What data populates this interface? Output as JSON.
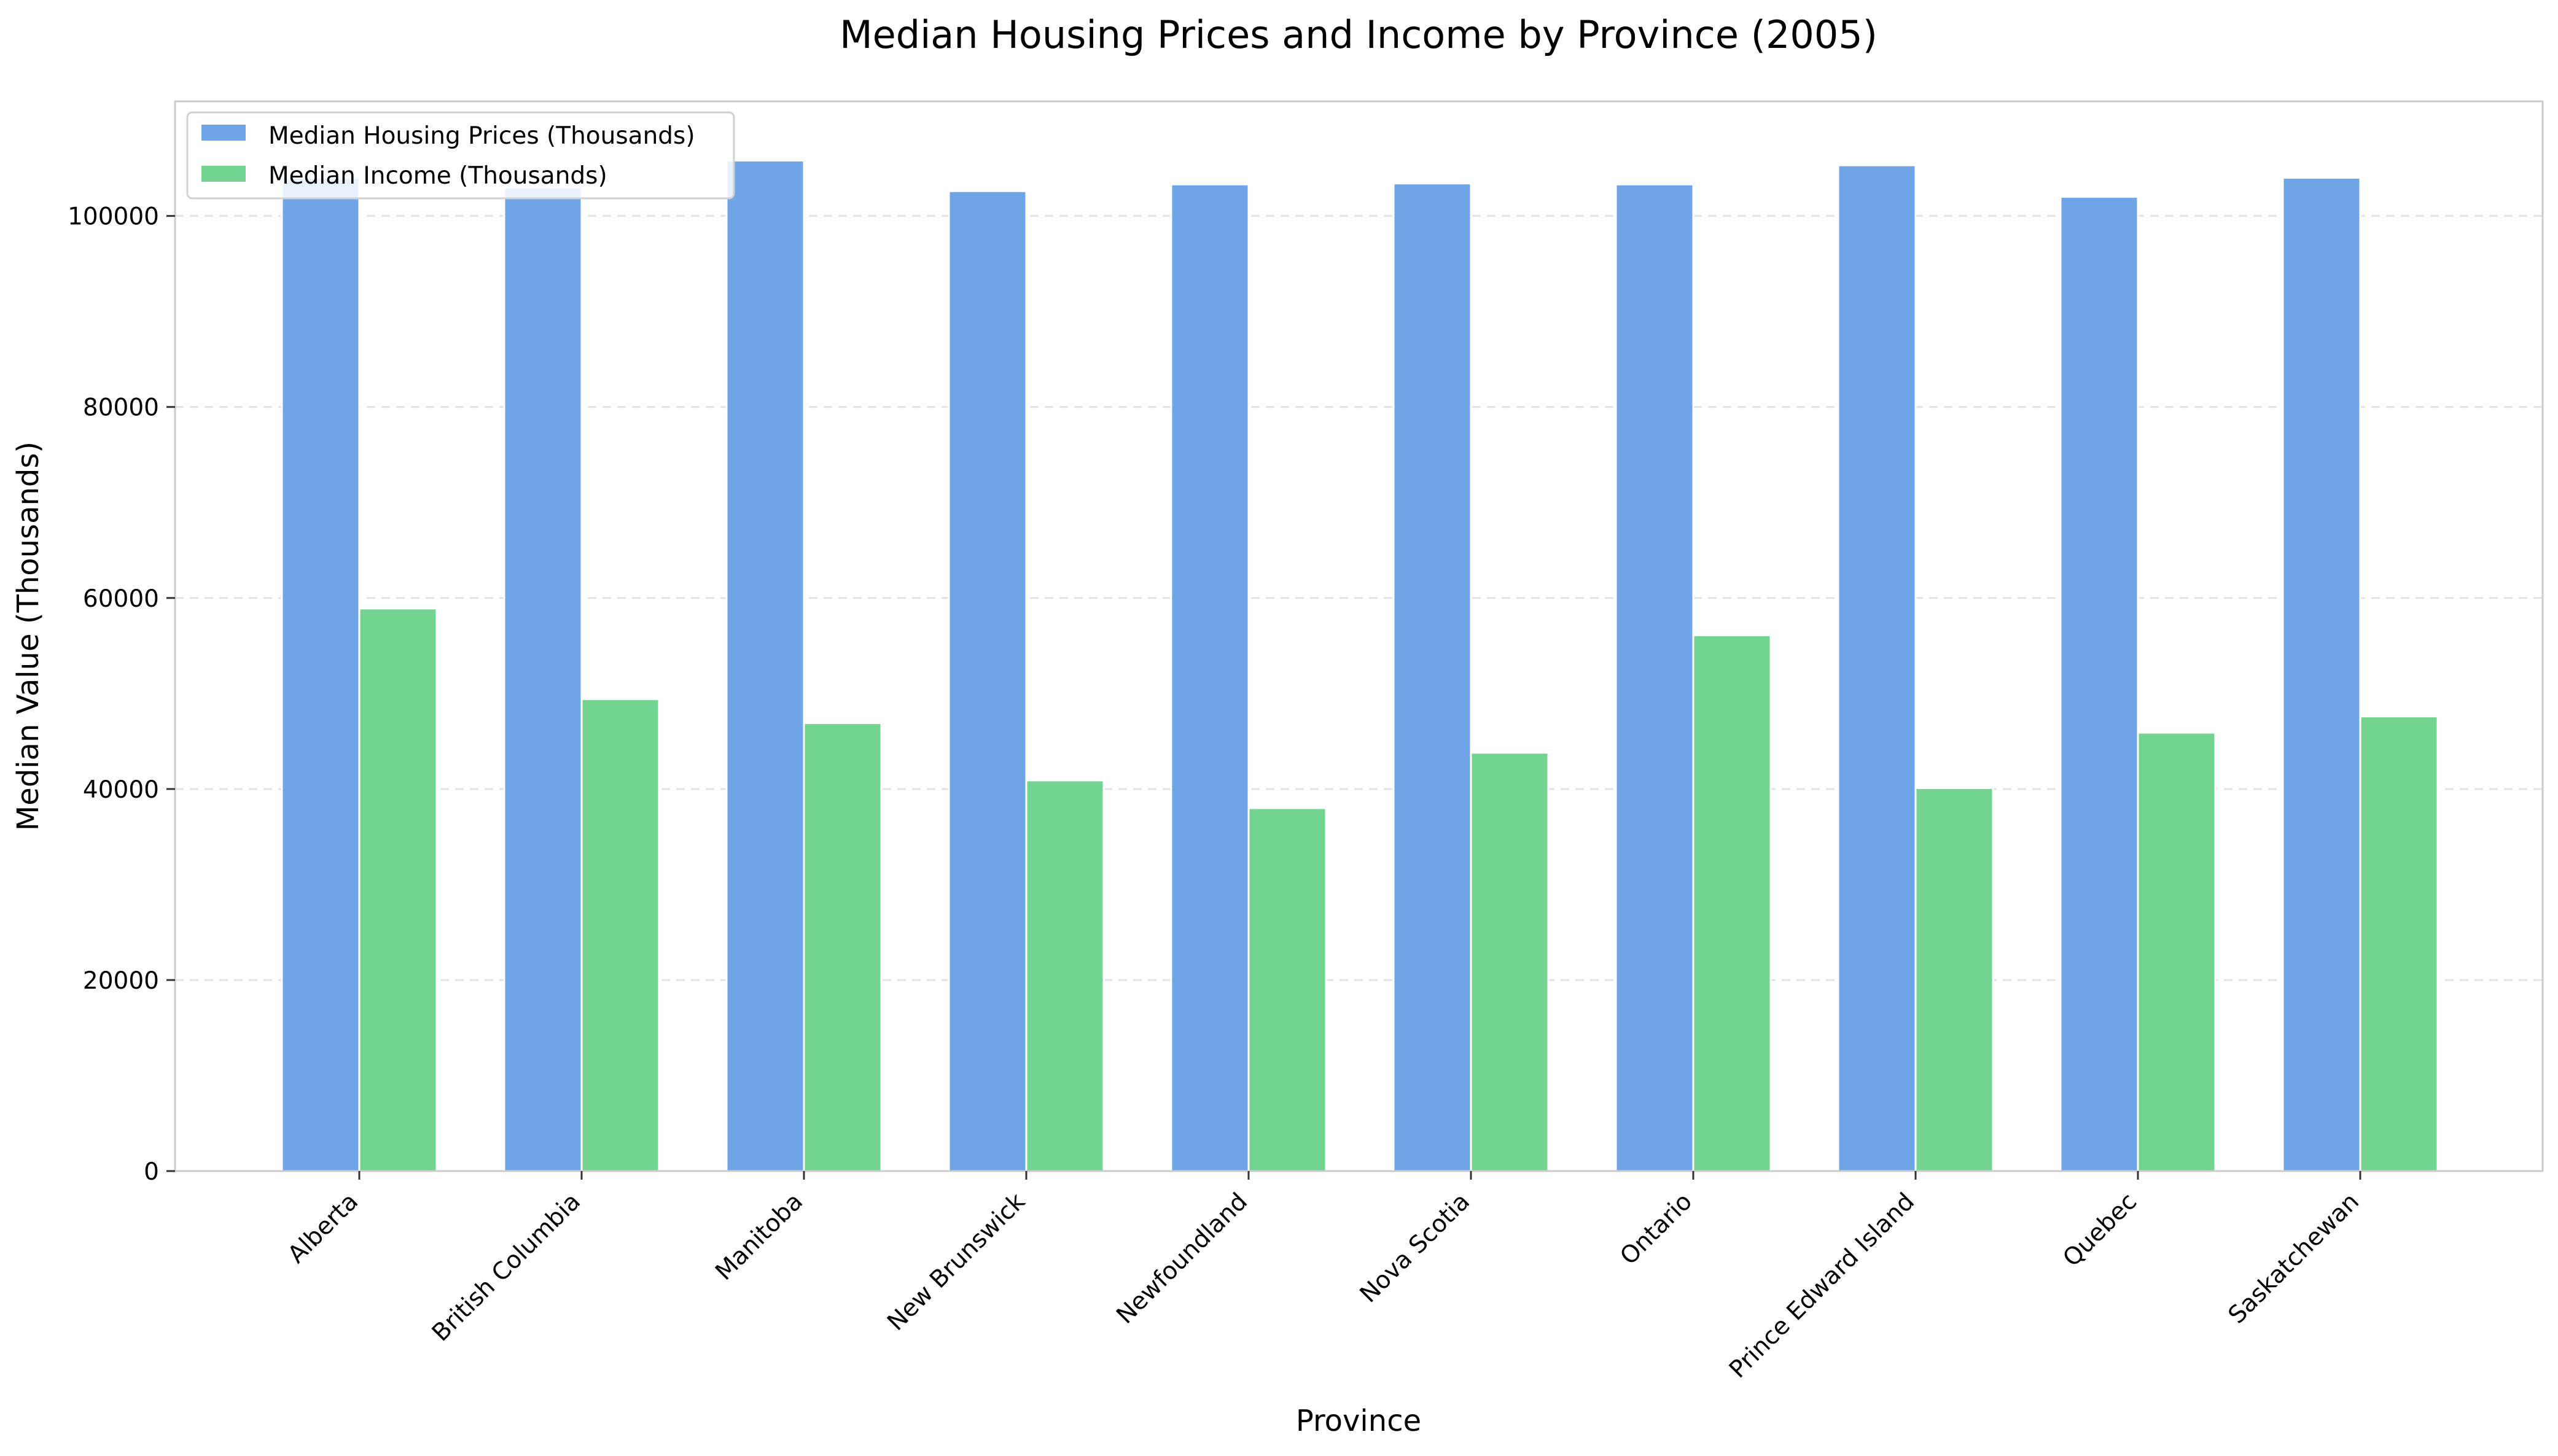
{
  "chart_data": {
    "type": "bar",
    "title": "Median Housing Prices and Income by Province (2005)",
    "xlabel": "Province",
    "ylabel": "Median Value (Thousands)",
    "categories": [
      "Alberta",
      "British Columbia",
      "Manitoba",
      "New Brunswick",
      "Newfoundland",
      "Nova Scotia",
      "Ontario",
      "Prince Edward Island",
      "Quebec",
      "Saskatchewan"
    ],
    "series": [
      {
        "name": "Median Housing Prices (Thousands)",
        "color": "#6fa5e6",
        "values": [
          104000,
          103000,
          105800,
          102600,
          103300,
          103400,
          103300,
          105300,
          102000,
          104000
        ]
      },
      {
        "name": "Median Income (Thousands)",
        "color": "#73d491",
        "values": [
          58900,
          49400,
          46900,
          40900,
          38000,
          43800,
          56100,
          40100,
          45900,
          47600
        ]
      }
    ],
    "ylim": [
      0,
      112000
    ],
    "yticks": [
      "0",
      "20000",
      "40000",
      "60000",
      "80000",
      "100000"
    ],
    "ytick_values": [
      0,
      20000,
      40000,
      60000,
      80000,
      100000
    ],
    "grid": true,
    "legend_position": "top-left"
  }
}
